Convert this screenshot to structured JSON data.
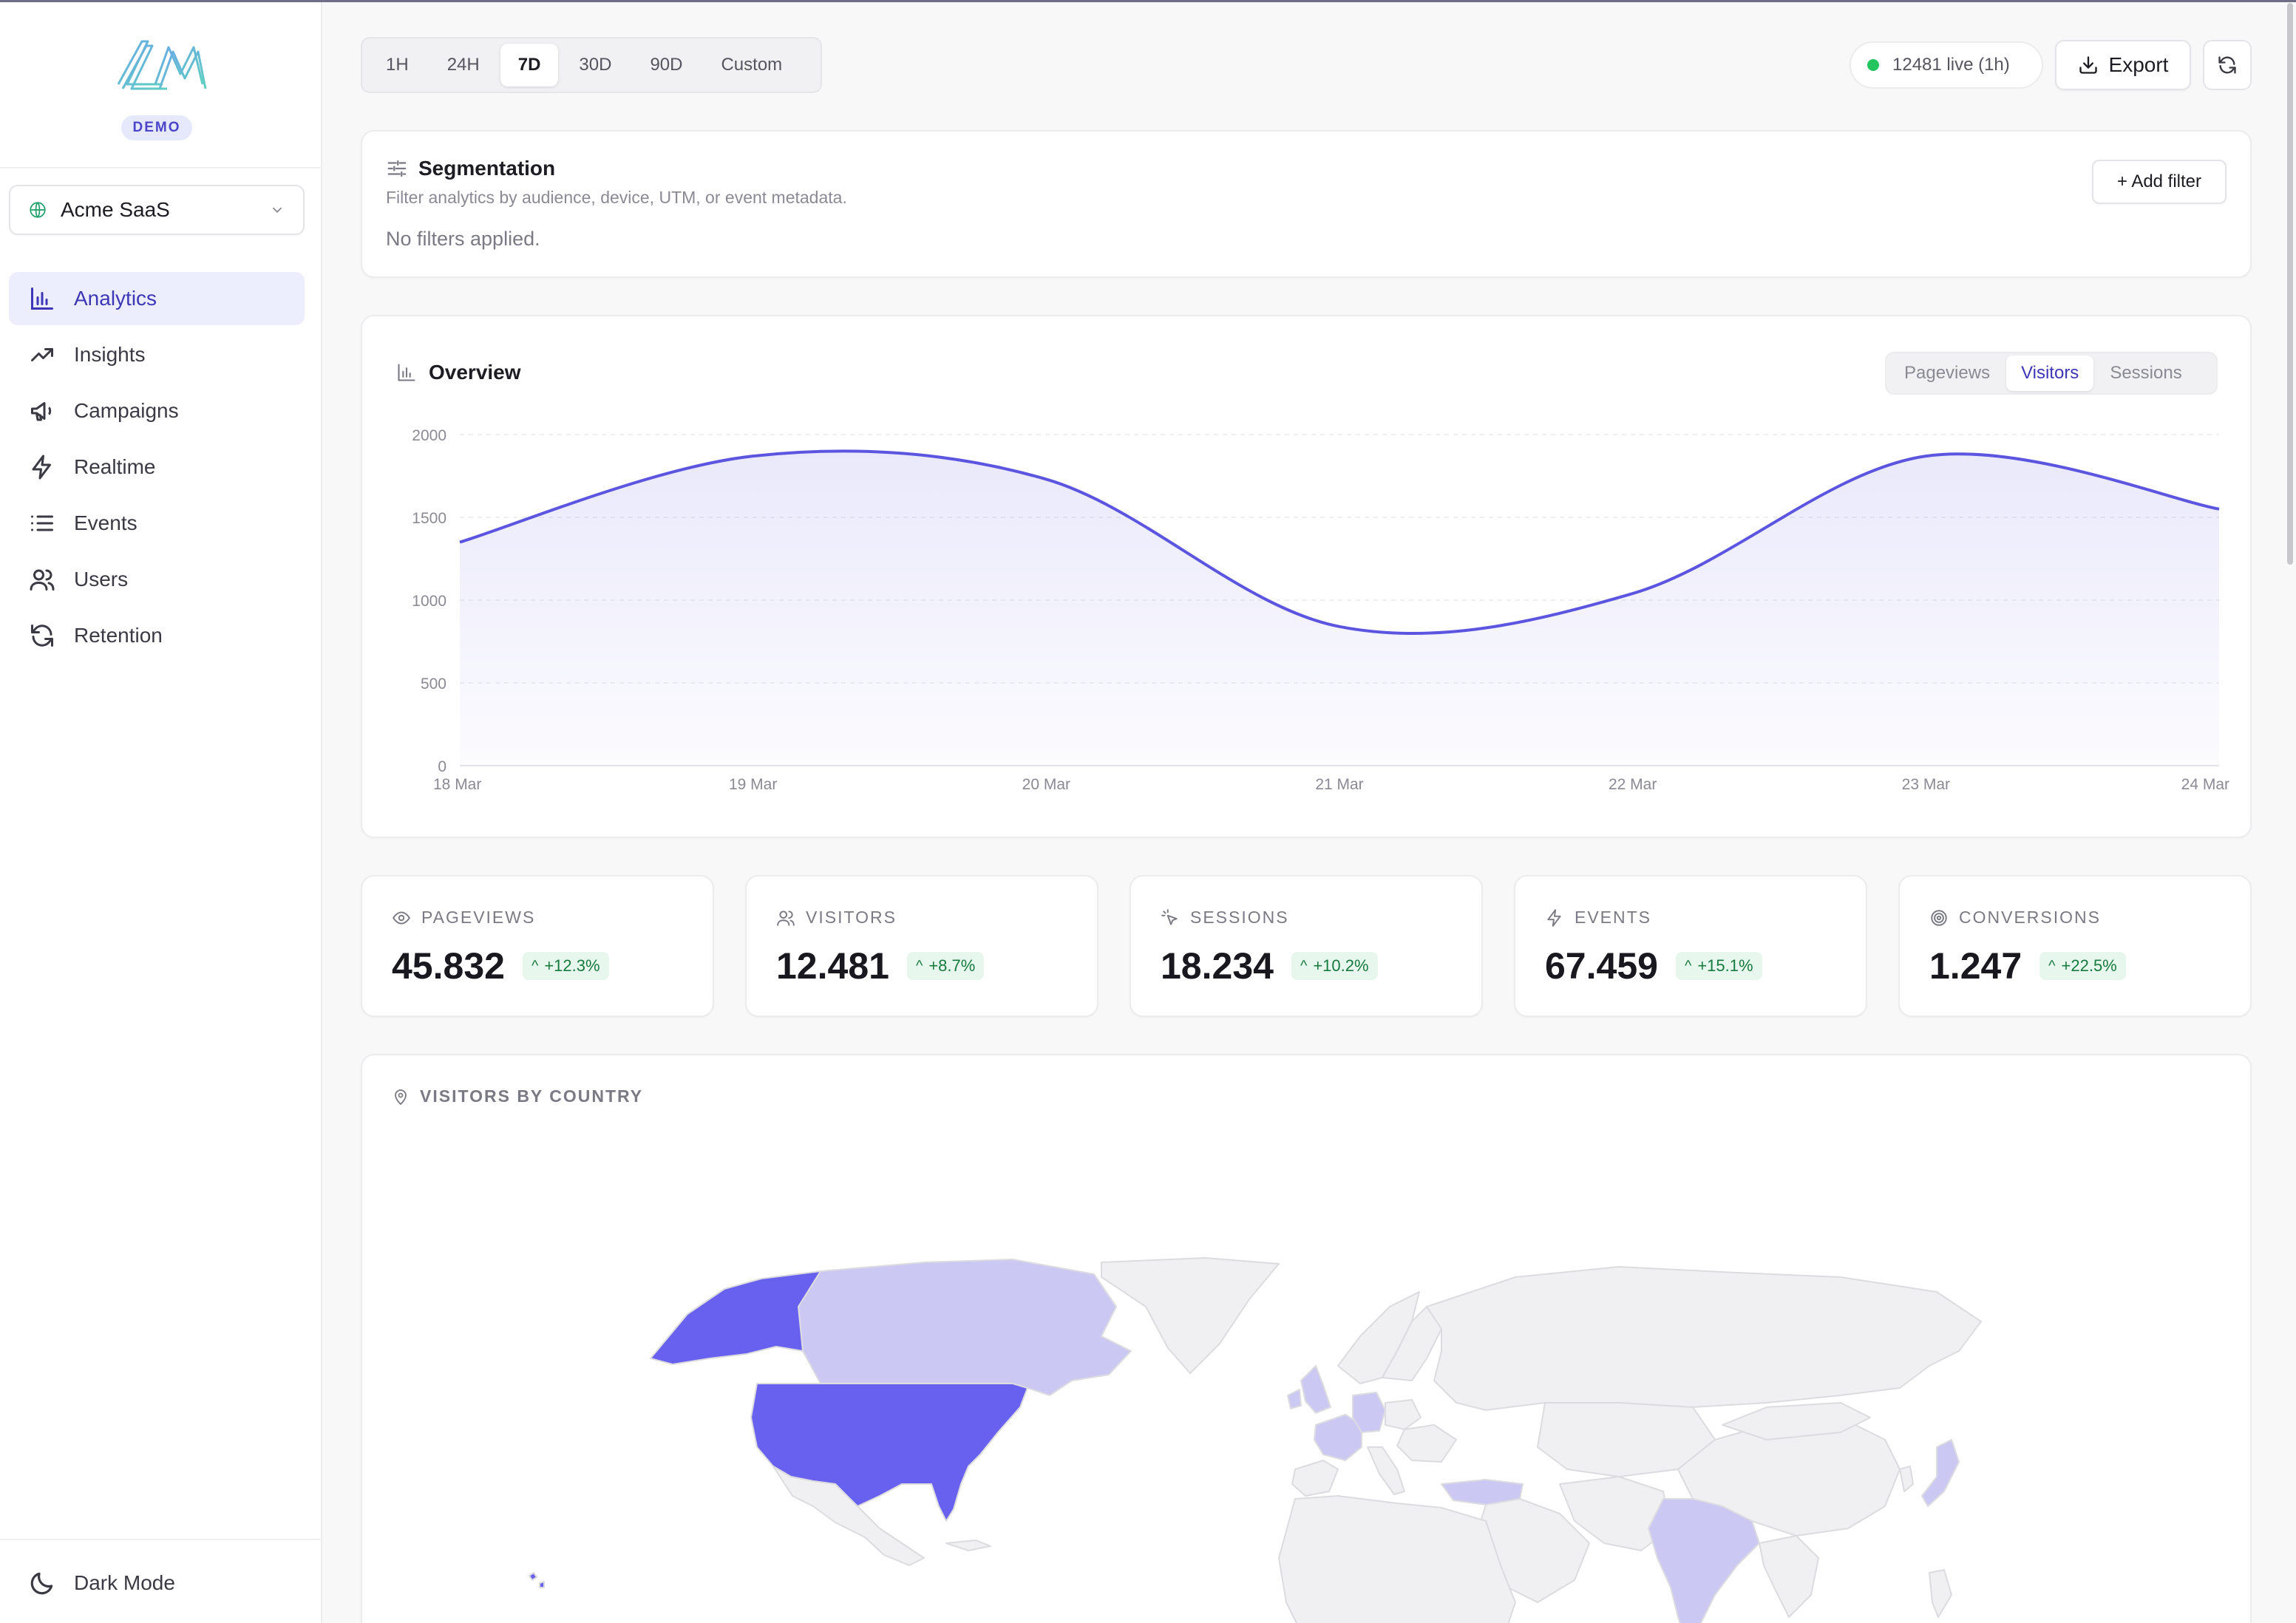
{
  "brand": {
    "badge": "DEMO"
  },
  "site_selector": {
    "value": "Acme SaaS"
  },
  "nav": [
    {
      "label": "Analytics",
      "icon": "bar-chart-icon",
      "active": true
    },
    {
      "label": "Insights",
      "icon": "trending-up-icon",
      "active": false
    },
    {
      "label": "Campaigns",
      "icon": "megaphone-icon",
      "active": false
    },
    {
      "label": "Realtime",
      "icon": "lightning-icon",
      "active": false
    },
    {
      "label": "Events",
      "icon": "list-icon",
      "active": false
    },
    {
      "label": "Users",
      "icon": "users-icon",
      "active": false
    },
    {
      "label": "Retention",
      "icon": "refresh-icon",
      "active": false
    }
  ],
  "dark_mode": {
    "label": "Dark Mode"
  },
  "time_ranges": [
    "1H",
    "24H",
    "7D",
    "30D",
    "90D",
    "Custom"
  ],
  "active_time_range": "7D",
  "live": {
    "text": "12481 live (1h)"
  },
  "export": {
    "label": "Export"
  },
  "segmentation": {
    "title": "Segmentation",
    "subtitle": "Filter analytics by audience, device, UTM, or event metadata.",
    "empty_text": "No filters applied.",
    "add_filter_label": "+ Add filter"
  },
  "overview": {
    "title": "Overview",
    "metric_tabs": [
      "Pageviews",
      "Visitors",
      "Sessions"
    ],
    "active_metric": "Visitors"
  },
  "chart_data": {
    "type": "area",
    "x": [
      "18 Mar",
      "19 Mar",
      "20 Mar",
      "21 Mar",
      "22 Mar",
      "23 Mar",
      "24 Mar"
    ],
    "series": [
      {
        "values": [
          1350,
          1870,
          1730,
          840,
          1040,
          1870,
          1550
        ]
      }
    ],
    "ylim": [
      0,
      2000
    ],
    "yticks": [
      0,
      500,
      1000,
      1500,
      2000
    ],
    "grid": true,
    "color": "#5b55e0"
  },
  "stats": [
    {
      "label": "PAGEVIEWS",
      "icon": "eye-icon",
      "value": "45.832",
      "delta": "+12.3%"
    },
    {
      "label": "VISITORS",
      "icon": "users-icon",
      "value": "12.481",
      "delta": "+8.7%"
    },
    {
      "label": "SESSIONS",
      "icon": "cursor-click-icon",
      "value": "18.234",
      "delta": "+10.2%"
    },
    {
      "label": "EVENTS",
      "icon": "lightning-icon",
      "value": "67.459",
      "delta": "+15.1%"
    },
    {
      "label": "CONVERSIONS",
      "icon": "target-icon",
      "value": "1.247",
      "delta": "+22.5%"
    }
  ],
  "map": {
    "title": "VISITORS BY COUNTRY",
    "colors": {
      "high": "#6860ee",
      "medium": "#cbc8f4",
      "low": "#f0f0f2",
      "border": "#dcdce0"
    }
  }
}
